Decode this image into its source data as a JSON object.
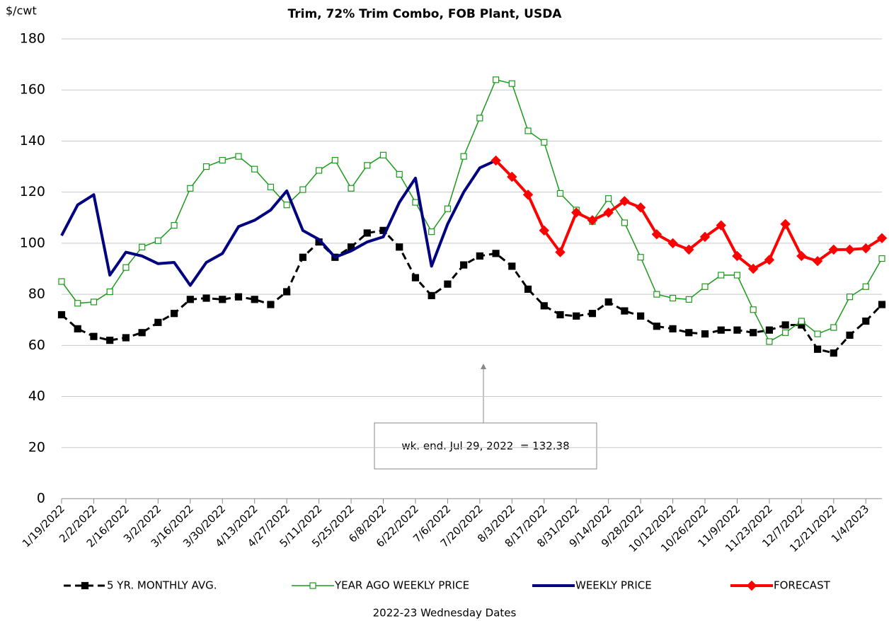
{
  "chart_data": {
    "type": "line",
    "title": "Trim, 72% Trim Combo, FOB Plant, USDA",
    "y_label": "$/cwt",
    "x_label": "2022-23 Wednesday Dates",
    "annotation": "wk. end. Jul 29, 2022  = 132.38",
    "categories": [
      "1/19/2022",
      null,
      "2/2/2022",
      null,
      "2/16/2022",
      null,
      "3/2/2022",
      null,
      "3/16/2022",
      null,
      "3/30/2022",
      null,
      "4/13/2022",
      null,
      "4/27/2022",
      null,
      "5/11/2022",
      null,
      "5/25/2022",
      null,
      "6/8/2022",
      null,
      "6/22/2022",
      null,
      "7/6/2022",
      null,
      "7/20/2022",
      null,
      "8/3/2022",
      null,
      "8/17/2022",
      null,
      "8/31/2022",
      null,
      "9/14/2022",
      null,
      "9/28/2022",
      null,
      "10/12/2022",
      null,
      "10/26/2022",
      null,
      "11/9/2022",
      null,
      "11/23/2022",
      null,
      "12/7/2022",
      null,
      "12/21/2022",
      null,
      "1/4/2023",
      null
    ],
    "series": [
      {
        "name": "5 YR. MONTHLY AVG.",
        "color": "#000000",
        "dashed": true,
        "marker": "square",
        "marker_filled": true,
        "line_width": 3,
        "values": [
          72,
          66.5,
          63.5,
          62,
          63,
          65,
          69,
          72.5,
          78,
          78.5,
          78,
          79,
          78,
          76,
          81,
          94.5,
          100.5,
          94.5,
          98.5,
          104,
          105,
          98.5,
          86.5,
          79.5,
          84,
          91.5,
          95,
          96,
          91,
          82,
          75.5,
          72,
          71.5,
          72.5,
          77,
          73.5,
          71.5,
          67.5,
          66.5,
          65,
          64.5,
          66,
          66,
          65,
          66,
          68,
          68,
          58.5,
          57,
          64,
          69.5,
          76
        ]
      },
      {
        "name": "YEAR AGO WEEKLY PRICE",
        "color": "#1a9a1a",
        "dashed": false,
        "marker": "square",
        "marker_filled": false,
        "line_width": 1.5,
        "values": [
          85,
          76.5,
          77,
          81,
          90.5,
          98.5,
          101,
          107,
          121.5,
          130,
          132.5,
          134,
          129,
          122,
          115,
          121,
          128.5,
          132.5,
          121.5,
          130.5,
          134.5,
          127,
          116,
          104.5,
          113.5,
          134,
          149,
          164,
          162.5,
          144,
          139.5,
          119.5,
          113,
          108.5,
          117.5,
          108,
          94.5,
          80,
          78.5,
          78,
          83,
          87.5,
          87.5,
          74,
          61.5,
          65,
          69.5,
          64.5,
          67,
          79,
          83,
          94
        ]
      },
      {
        "name": "WEEKLY PRICE",
        "color": "#000080",
        "dashed": false,
        "marker": "none",
        "marker_filled": true,
        "line_width": 4,
        "values": [
          103,
          115,
          119,
          87.5,
          96.5,
          95,
          92,
          92.5,
          83.5,
          92.5,
          96,
          106.5,
          109,
          113,
          120.5,
          105,
          101.5,
          94.5,
          97,
          100.5,
          102.5,
          116,
          125.5,
          91,
          107.5,
          120,
          129.5,
          132.38,
          null,
          null,
          null,
          null,
          null,
          null,
          null,
          null,
          null,
          null,
          null,
          null,
          null,
          null,
          null,
          null,
          null,
          null,
          null,
          null,
          null,
          null,
          null,
          null
        ]
      },
      {
        "name": "FORECAST",
        "color": "#ff0000",
        "dashed": false,
        "marker": "diamond",
        "marker_filled": true,
        "line_width": 4,
        "values": [
          null,
          null,
          null,
          null,
          null,
          null,
          null,
          null,
          null,
          null,
          null,
          null,
          null,
          null,
          null,
          null,
          null,
          null,
          null,
          null,
          null,
          null,
          null,
          null,
          null,
          null,
          null,
          132.38,
          126,
          119,
          105,
          96.5,
          112,
          109,
          112,
          116.5,
          114,
          103.5,
          100,
          97.5,
          102.5,
          107,
          95,
          90,
          93.5,
          107.5,
          95,
          93,
          97.5,
          97.5,
          98,
          102
        ]
      }
    ],
    "ylim": [
      0,
      180
    ],
    "yticks": [
      0,
      20,
      40,
      60,
      80,
      100,
      120,
      140,
      160,
      180
    ],
    "grid": true,
    "legend": "bottom"
  }
}
